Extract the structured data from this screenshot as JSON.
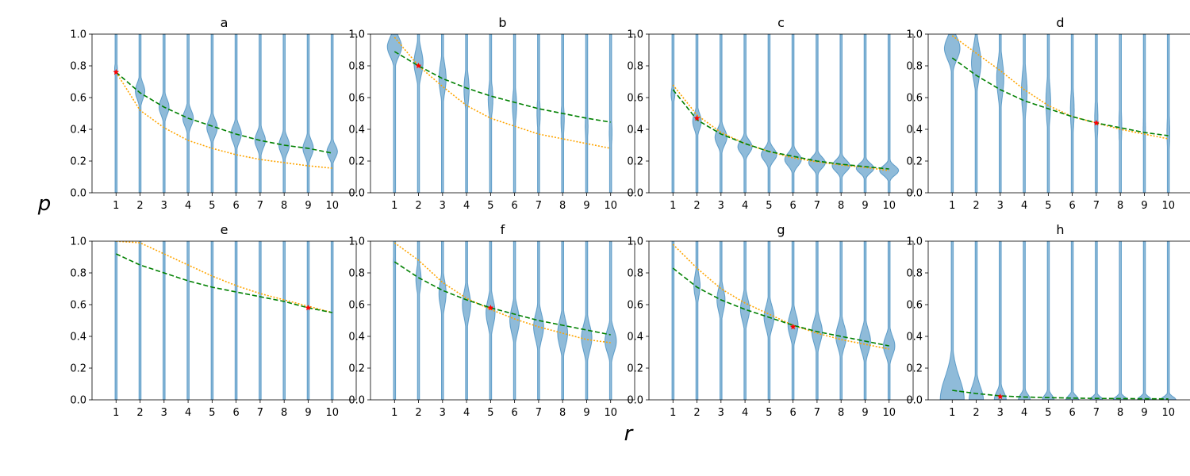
{
  "chart_data": {
    "type": "violin",
    "xlabel": "r",
    "ylabel": "p",
    "x_ticks": [
      1,
      2,
      3,
      4,
      5,
      6,
      7,
      8,
      9,
      10
    ],
    "y_ticks": [
      0.0,
      0.2,
      0.4,
      0.6,
      0.8,
      1.0
    ],
    "y_tick_labels": [
      "0.0",
      "0.2",
      "0.4",
      "0.6",
      "0.8",
      "1.0"
    ],
    "ylim": [
      0,
      1
    ],
    "xlim": [
      0,
      11
    ],
    "colors": {
      "violin": "#1f77b4",
      "green_curve": "#008000",
      "orange_curve": "#ffa500",
      "marker": "#ff0000"
    },
    "panels": [
      {
        "title": "a",
        "violins": [
          {
            "r": 1,
            "center": 0.78,
            "spread": 0.04,
            "width": 0.12
          },
          {
            "r": 2,
            "center": 0.64,
            "spread": 0.05,
            "width": 0.4
          },
          {
            "r": 3,
            "center": 0.54,
            "spread": 0.05,
            "width": 0.42
          },
          {
            "r": 4,
            "center": 0.47,
            "spread": 0.05,
            "width": 0.44
          },
          {
            "r": 5,
            "center": 0.41,
            "spread": 0.05,
            "width": 0.44
          },
          {
            "r": 6,
            "center": 0.37,
            "spread": 0.05,
            "width": 0.44
          },
          {
            "r": 7,
            "center": 0.33,
            "spread": 0.05,
            "width": 0.44
          },
          {
            "r": 8,
            "center": 0.3,
            "spread": 0.05,
            "width": 0.44
          },
          {
            "r": 9,
            "center": 0.28,
            "spread": 0.05,
            "width": 0.44
          },
          {
            "r": 10,
            "center": 0.26,
            "spread": 0.04,
            "width": 0.44
          }
        ],
        "green": [
          0.76,
          0.63,
          0.54,
          0.47,
          0.42,
          0.37,
          0.33,
          0.3,
          0.28,
          0.25
        ],
        "orange": [
          0.76,
          0.52,
          0.41,
          0.33,
          0.28,
          0.24,
          0.21,
          0.19,
          0.17,
          0.155
        ],
        "marker": {
          "r": 1,
          "p": 0.76
        }
      },
      {
        "title": "b",
        "violins": [
          {
            "r": 1,
            "center": 0.92,
            "spread": 0.06,
            "width": 0.6
          },
          {
            "r": 2,
            "center": 0.82,
            "spread": 0.08,
            "width": 0.38
          },
          {
            "r": 3,
            "center": 0.72,
            "spread": 0.09,
            "width": 0.3
          },
          {
            "r": 4,
            "center": 0.65,
            "spread": 0.09,
            "width": 0.22
          },
          {
            "r": 5,
            "center": 0.59,
            "spread": 0.09,
            "width": 0.2
          },
          {
            "r": 6,
            "center": 0.55,
            "spread": 0.09,
            "width": 0.18
          },
          {
            "r": 7,
            "center": 0.5,
            "spread": 0.09,
            "width": 0.14
          },
          {
            "r": 8,
            "center": 0.46,
            "spread": 0.09,
            "width": 0.14
          },
          {
            "r": 9,
            "center": 0.42,
            "spread": 0.09,
            "width": 0.12
          },
          {
            "r": 10,
            "center": 0.38,
            "spread": 0.09,
            "width": 0.12
          }
        ],
        "green": [
          0.89,
          0.8,
          0.72,
          0.66,
          0.61,
          0.57,
          0.53,
          0.5,
          0.47,
          0.445
        ],
        "orange": [
          0.98,
          0.8,
          0.67,
          0.55,
          0.47,
          0.42,
          0.37,
          0.34,
          0.31,
          0.28
        ],
        "marker": {
          "r": 2,
          "p": 0.8
        }
      },
      {
        "title": "c",
        "violins": [
          {
            "r": 1,
            "center": 0.62,
            "spread": 0.04,
            "width": 0.16
          },
          {
            "r": 2,
            "center": 0.45,
            "spread": 0.05,
            "width": 0.36
          },
          {
            "r": 3,
            "center": 0.35,
            "spread": 0.05,
            "width": 0.5
          },
          {
            "r": 4,
            "center": 0.29,
            "spread": 0.04,
            "width": 0.6
          },
          {
            "r": 5,
            "center": 0.24,
            "spread": 0.04,
            "width": 0.65
          },
          {
            "r": 6,
            "center": 0.21,
            "spread": 0.04,
            "width": 0.7
          },
          {
            "r": 7,
            "center": 0.19,
            "spread": 0.035,
            "width": 0.7
          },
          {
            "r": 8,
            "center": 0.17,
            "spread": 0.035,
            "width": 0.75
          },
          {
            "r": 9,
            "center": 0.155,
            "spread": 0.03,
            "width": 0.75
          },
          {
            "r": 10,
            "center": 0.14,
            "spread": 0.03,
            "width": 0.8
          }
        ],
        "green": [
          0.65,
          0.46,
          0.37,
          0.31,
          0.26,
          0.23,
          0.2,
          0.18,
          0.165,
          0.15
        ],
        "orange": [
          0.68,
          0.49,
          0.38,
          0.31,
          0.26,
          0.22,
          0.195,
          0.175,
          0.16,
          0.14
        ],
        "marker": {
          "r": 2,
          "p": 0.47
        }
      },
      {
        "title": "d",
        "violins": [
          {
            "r": 1,
            "center": 0.91,
            "spread": 0.07,
            "width": 0.65
          },
          {
            "r": 2,
            "center": 0.82,
            "spread": 0.1,
            "width": 0.4
          },
          {
            "r": 3,
            "center": 0.72,
            "spread": 0.11,
            "width": 0.3
          },
          {
            "r": 4,
            "center": 0.64,
            "spread": 0.12,
            "width": 0.24
          },
          {
            "r": 5,
            "center": 0.57,
            "spread": 0.12,
            "width": 0.2
          },
          {
            "r": 6,
            "center": 0.52,
            "spread": 0.12,
            "width": 0.16
          },
          {
            "r": 7,
            "center": 0.46,
            "spread": 0.12,
            "width": 0.14
          },
          {
            "r": 8,
            "center": 0.42,
            "spread": 0.12,
            "width": 0.12
          },
          {
            "r": 9,
            "center": 0.4,
            "spread": 0.12,
            "width": 0.1
          },
          {
            "r": 10,
            "center": 0.38,
            "spread": 0.12,
            "width": 0.12
          }
        ],
        "green": [
          0.85,
          0.74,
          0.65,
          0.58,
          0.53,
          0.48,
          0.44,
          0.41,
          0.38,
          0.36
        ],
        "orange": [
          0.99,
          0.88,
          0.77,
          0.65,
          0.55,
          0.48,
          0.44,
          0.4,
          0.37,
          0.34
        ],
        "marker": {
          "r": 7,
          "p": 0.44
        }
      },
      {
        "title": "e",
        "violins": [
          {
            "r": 1,
            "center": 0.98,
            "spread": 0.03,
            "width": 0.06
          },
          {
            "r": 2,
            "center": 0.93,
            "spread": 0.07,
            "width": 0.06
          },
          {
            "r": 3,
            "center": 0.85,
            "spread": 0.13,
            "width": 0.06
          },
          {
            "r": 4,
            "center": 0.79,
            "spread": 0.16,
            "width": 0.06
          },
          {
            "r": 5,
            "center": 0.75,
            "spread": 0.18,
            "width": 0.06
          },
          {
            "r": 6,
            "center": 0.71,
            "spread": 0.2,
            "width": 0.06
          },
          {
            "r": 7,
            "center": 0.67,
            "spread": 0.22,
            "width": 0.06
          },
          {
            "r": 8,
            "center": 0.64,
            "spread": 0.23,
            "width": 0.06
          },
          {
            "r": 9,
            "center": 0.61,
            "spread": 0.24,
            "width": 0.06
          },
          {
            "r": 10,
            "center": 0.58,
            "spread": 0.25,
            "width": 0.06
          }
        ],
        "green": [
          0.92,
          0.85,
          0.8,
          0.75,
          0.71,
          0.68,
          0.65,
          0.62,
          0.58,
          0.55
        ],
        "orange": [
          1.0,
          0.99,
          0.92,
          0.85,
          0.78,
          0.72,
          0.67,
          0.63,
          0.59,
          0.55
        ],
        "marker": {
          "r": 9,
          "p": 0.58
        }
      },
      {
        "title": "f",
        "violins": [
          {
            "r": 1,
            "center": 0.87,
            "spread": 0.04,
            "width": 0.1
          },
          {
            "r": 2,
            "center": 0.76,
            "spread": 0.07,
            "width": 0.22
          },
          {
            "r": 3,
            "center": 0.67,
            "spread": 0.08,
            "width": 0.3
          },
          {
            "r": 4,
            "center": 0.6,
            "spread": 0.08,
            "width": 0.35
          },
          {
            "r": 5,
            "center": 0.55,
            "spread": 0.08,
            "width": 0.38
          },
          {
            "r": 6,
            "center": 0.5,
            "spread": 0.08,
            "width": 0.4
          },
          {
            "r": 7,
            "center": 0.46,
            "spread": 0.08,
            "width": 0.42
          },
          {
            "r": 8,
            "center": 0.42,
            "spread": 0.08,
            "width": 0.42
          },
          {
            "r": 9,
            "center": 0.39,
            "spread": 0.08,
            "width": 0.44
          },
          {
            "r": 10,
            "center": 0.37,
            "spread": 0.07,
            "width": 0.48
          }
        ],
        "green": [
          0.87,
          0.77,
          0.69,
          0.63,
          0.58,
          0.54,
          0.5,
          0.47,
          0.44,
          0.41
        ],
        "orange": [
          0.99,
          0.88,
          0.74,
          0.64,
          0.57,
          0.51,
          0.46,
          0.42,
          0.38,
          0.36
        ],
        "marker": {
          "r": 5,
          "p": 0.58
        }
      },
      {
        "title": "g",
        "violins": [
          {
            "r": 1,
            "center": 0.86,
            "spread": 0.05,
            "width": 0.08
          },
          {
            "r": 2,
            "center": 0.72,
            "spread": 0.07,
            "width": 0.26
          },
          {
            "r": 3,
            "center": 0.63,
            "spread": 0.07,
            "width": 0.34
          },
          {
            "r": 4,
            "center": 0.57,
            "spread": 0.07,
            "width": 0.38
          },
          {
            "r": 5,
            "center": 0.52,
            "spread": 0.07,
            "width": 0.42
          },
          {
            "r": 6,
            "center": 0.47,
            "spread": 0.07,
            "width": 0.42
          },
          {
            "r": 7,
            "center": 0.43,
            "spread": 0.07,
            "width": 0.44
          },
          {
            "r": 8,
            "center": 0.4,
            "spread": 0.07,
            "width": 0.44
          },
          {
            "r": 9,
            "center": 0.37,
            "spread": 0.07,
            "width": 0.46
          },
          {
            "r": 10,
            "center": 0.34,
            "spread": 0.06,
            "width": 0.48
          }
        ],
        "green": [
          0.83,
          0.71,
          0.63,
          0.57,
          0.52,
          0.47,
          0.43,
          0.4,
          0.37,
          0.34
        ],
        "orange": [
          0.98,
          0.83,
          0.7,
          0.61,
          0.54,
          0.47,
          0.42,
          0.38,
          0.35,
          0.32
        ],
        "marker": {
          "r": 6,
          "p": 0.46
        }
      },
      {
        "title": "h",
        "violins": [
          {
            "r": 1,
            "center": 0.0,
            "spread": 0.14,
            "width": 1.0
          },
          {
            "r": 2,
            "center": 0.0,
            "spread": 0.08,
            "width": 0.6
          },
          {
            "r": 3,
            "center": 0.0,
            "spread": 0.05,
            "width": 0.5
          },
          {
            "r": 4,
            "center": 0.0,
            "spread": 0.035,
            "width": 0.5
          },
          {
            "r": 5,
            "center": 0.0,
            "spread": 0.03,
            "width": 0.5
          },
          {
            "r": 6,
            "center": 0.0,
            "spread": 0.025,
            "width": 0.55
          },
          {
            "r": 7,
            "center": 0.0,
            "spread": 0.02,
            "width": 0.55
          },
          {
            "r": 8,
            "center": 0.0,
            "spread": 0.02,
            "width": 0.6
          },
          {
            "r": 9,
            "center": 0.0,
            "spread": 0.02,
            "width": 0.6
          },
          {
            "r": 10,
            "center": 0.0,
            "spread": 0.02,
            "width": 0.65
          }
        ],
        "green": [
          0.06,
          0.04,
          0.025,
          0.018,
          0.014,
          0.011,
          0.009,
          0.008,
          0.007,
          0.006
        ],
        "orange": [],
        "marker": {
          "r": 3,
          "p": 0.02
        }
      }
    ]
  }
}
